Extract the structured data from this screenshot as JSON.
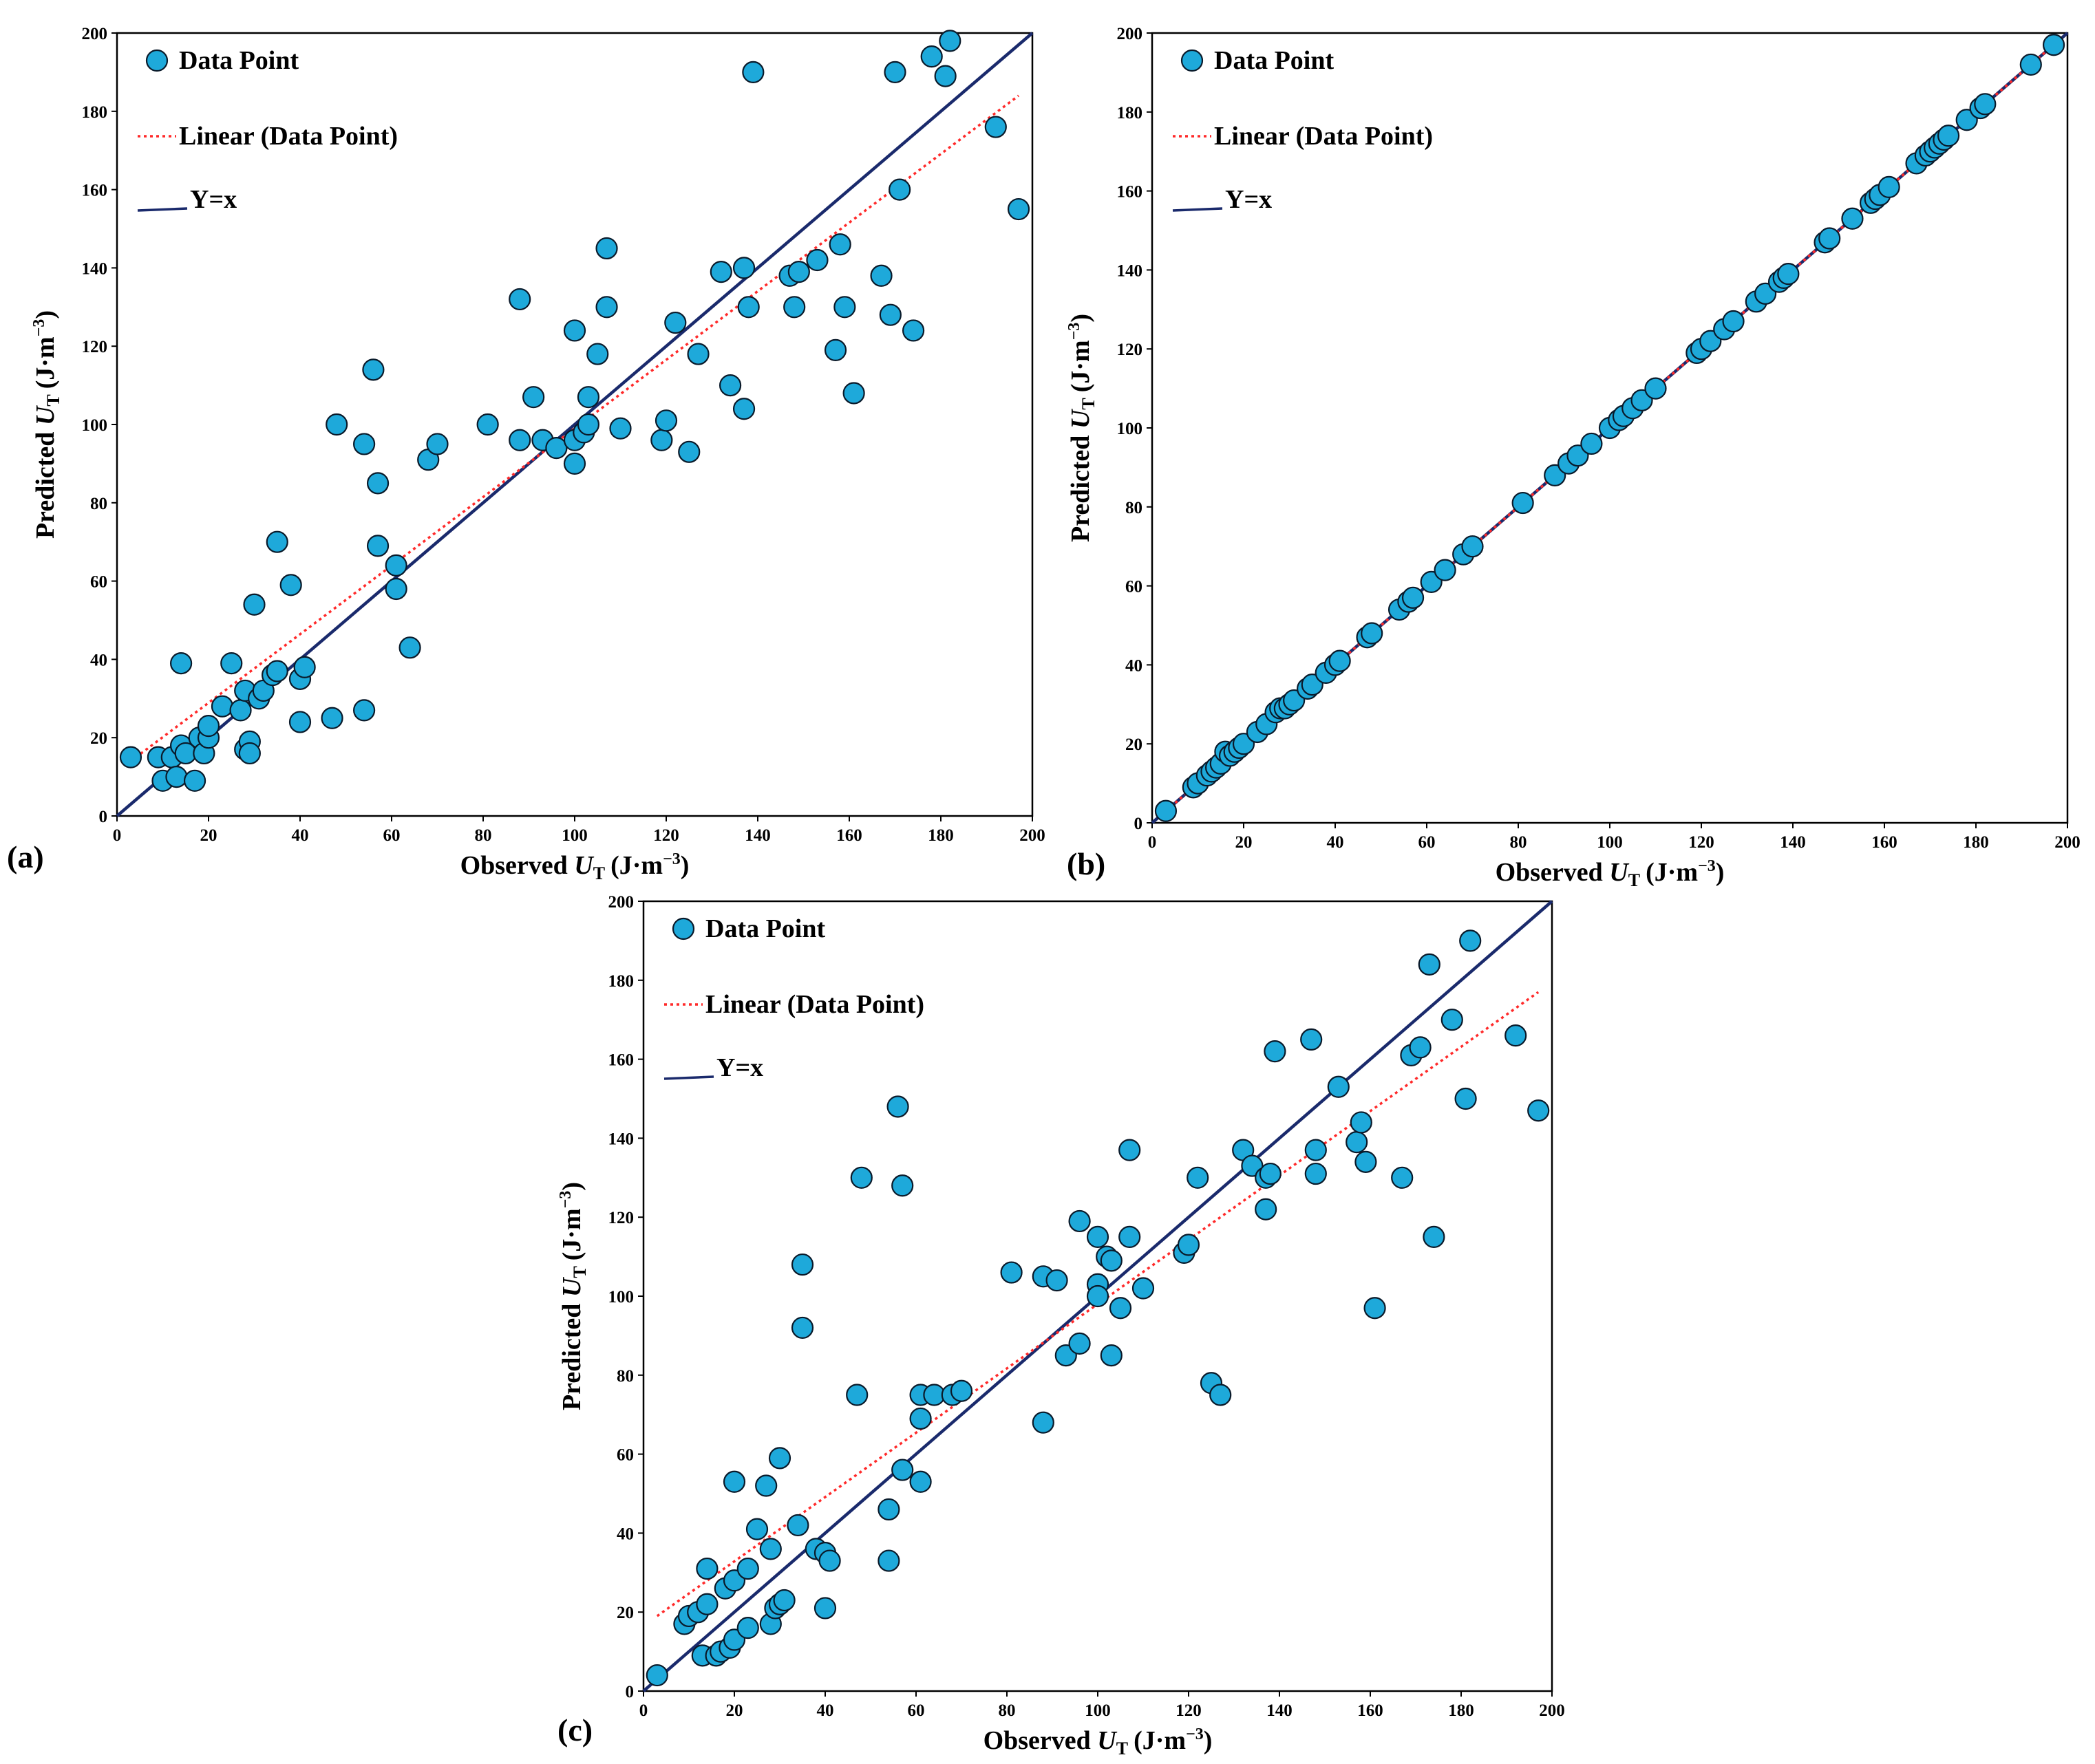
{
  "chart_data": [
    {
      "type": "scatter",
      "panel_label": "(a)",
      "xlabel_prefix": "Observed ",
      "ylabel_prefix": "Predicted ",
      "symbol": "U",
      "subscript": "T",
      "unit": "(J·m",
      "unit_exp": "−3",
      "unit_close": ")",
      "xlim": [
        0,
        200
      ],
      "ylim": [
        0,
        200
      ],
      "xticks": [
        "0",
        "20",
        "40",
        "60",
        "80",
        "100",
        "120",
        "140",
        "160",
        "180",
        "200"
      ],
      "yticks": [
        "0",
        "20",
        "40",
        "60",
        "80",
        "100",
        "120",
        "140",
        "160",
        "180",
        "200"
      ],
      "legend": [
        "Data Point",
        "Linear (Data Point)",
        "Y=x"
      ],
      "trend": {
        "x": [
          3,
          197
        ],
        "y": [
          14,
          184
        ]
      },
      "identity": {
        "x": [
          0,
          200
        ],
        "y": [
          0,
          200
        ]
      },
      "colors": {
        "points": "#1ea9da",
        "trend": "#ff2a2a",
        "identity": "#1a2a6c"
      },
      "points": [
        [
          3,
          15
        ],
        [
          9,
          15
        ],
        [
          10,
          9
        ],
        [
          12,
          15
        ],
        [
          13,
          10
        ],
        [
          14,
          18
        ],
        [
          14,
          39
        ],
        [
          15,
          16
        ],
        [
          17,
          9
        ],
        [
          18,
          20
        ],
        [
          19,
          16
        ],
        [
          20,
          20
        ],
        [
          20,
          23
        ],
        [
          23,
          28
        ],
        [
          25,
          39
        ],
        [
          27,
          27
        ],
        [
          28,
          32
        ],
        [
          28,
          17
        ],
        [
          29,
          19
        ],
        [
          29,
          16
        ],
        [
          30,
          54
        ],
        [
          31,
          30
        ],
        [
          32,
          32
        ],
        [
          34,
          36
        ],
        [
          35,
          37
        ],
        [
          35,
          70
        ],
        [
          38,
          59
        ],
        [
          40,
          35
        ],
        [
          40,
          24
        ],
        [
          41,
          38
        ],
        [
          47,
          25
        ],
        [
          48,
          100
        ],
        [
          54,
          95
        ],
        [
          54,
          27
        ],
        [
          56,
          114
        ],
        [
          57,
          85
        ],
        [
          57,
          69
        ],
        [
          61,
          64
        ],
        [
          61,
          58
        ],
        [
          64,
          43
        ],
        [
          68,
          91
        ],
        [
          70,
          95
        ],
        [
          81,
          100
        ],
        [
          88,
          96
        ],
        [
          88,
          132
        ],
        [
          91,
          107
        ],
        [
          93,
          96
        ],
        [
          96,
          94
        ],
        [
          100,
          124
        ],
        [
          100,
          96
        ],
        [
          100,
          90
        ],
        [
          102,
          98
        ],
        [
          103,
          100
        ],
        [
          103,
          107
        ],
        [
          105,
          118
        ],
        [
          107,
          145
        ],
        [
          107,
          130
        ],
        [
          110,
          99
        ],
        [
          119,
          96
        ],
        [
          120,
          101
        ],
        [
          122,
          126
        ],
        [
          125,
          93
        ],
        [
          127,
          118
        ],
        [
          132,
          139
        ],
        [
          134,
          110
        ],
        [
          137,
          140
        ],
        [
          137,
          104
        ],
        [
          138,
          130
        ],
        [
          139,
          190
        ],
        [
          147,
          138
        ],
        [
          148,
          130
        ],
        [
          149,
          139
        ],
        [
          153,
          142
        ],
        [
          157,
          119
        ],
        [
          158,
          146
        ],
        [
          159,
          130
        ],
        [
          161,
          108
        ],
        [
          167,
          138
        ],
        [
          169,
          128
        ],
        [
          170,
          190
        ],
        [
          171,
          160
        ],
        [
          174,
          124
        ],
        [
          178,
          194
        ],
        [
          181,
          189
        ],
        [
          182,
          198
        ],
        [
          192,
          176
        ],
        [
          197,
          155
        ]
      ]
    },
    {
      "type": "scatter",
      "panel_label": "(b)",
      "xlabel_prefix": "Observed ",
      "ylabel_prefix": "Predicted ",
      "symbol": "U",
      "subscript": "T",
      "unit": "(J·m",
      "unit_exp": "−3",
      "unit_close": ")",
      "xlim": [
        0,
        200
      ],
      "ylim": [
        0,
        200
      ],
      "xticks": [
        "0",
        "20",
        "40",
        "60",
        "80",
        "100",
        "120",
        "140",
        "160",
        "180",
        "200"
      ],
      "yticks": [
        "0",
        "20",
        "40",
        "60",
        "80",
        "100",
        "120",
        "140",
        "160",
        "180",
        "200"
      ],
      "legend": [
        "Data Point",
        "Linear (Data Point)",
        "Y=x"
      ],
      "trend": {
        "x": [
          3,
          197
        ],
        "y": [
          3,
          197
        ]
      },
      "identity": {
        "x": [
          0,
          200
        ],
        "y": [
          0,
          200
        ]
      },
      "colors": {
        "points": "#1ea9da",
        "trend": "#ff2a2a",
        "identity": "#1a2a6c"
      },
      "points": [
        [
          3,
          3
        ],
        [
          9,
          9
        ],
        [
          10,
          10
        ],
        [
          12,
          12
        ],
        [
          13,
          13
        ],
        [
          14,
          14
        ],
        [
          15,
          15
        ],
        [
          16,
          18
        ],
        [
          17,
          17
        ],
        [
          18,
          18
        ],
        [
          19,
          19
        ],
        [
          20,
          20
        ],
        [
          23,
          23
        ],
        [
          25,
          25
        ],
        [
          27,
          28
        ],
        [
          28,
          29
        ],
        [
          29,
          29
        ],
        [
          30,
          30
        ],
        [
          31,
          31
        ],
        [
          34,
          34
        ],
        [
          35,
          35
        ],
        [
          38,
          38
        ],
        [
          40,
          40
        ],
        [
          41,
          41
        ],
        [
          47,
          47
        ],
        [
          48,
          48
        ],
        [
          54,
          54
        ],
        [
          56,
          56
        ],
        [
          57,
          57
        ],
        [
          61,
          61
        ],
        [
          64,
          64
        ],
        [
          68,
          68
        ],
        [
          70,
          70
        ],
        [
          81,
          81
        ],
        [
          88,
          88
        ],
        [
          91,
          91
        ],
        [
          93,
          93
        ],
        [
          96,
          96
        ],
        [
          100,
          100
        ],
        [
          102,
          102
        ],
        [
          103,
          103
        ],
        [
          105,
          105
        ],
        [
          107,
          107
        ],
        [
          110,
          110
        ],
        [
          119,
          119
        ],
        [
          120,
          120
        ],
        [
          122,
          122
        ],
        [
          125,
          125
        ],
        [
          127,
          127
        ],
        [
          132,
          132
        ],
        [
          134,
          134
        ],
        [
          137,
          137
        ],
        [
          138,
          138
        ],
        [
          139,
          139
        ],
        [
          147,
          147
        ],
        [
          148,
          148
        ],
        [
          153,
          153
        ],
        [
          157,
          157
        ],
        [
          158,
          158
        ],
        [
          159,
          159
        ],
        [
          161,
          161
        ],
        [
          167,
          167
        ],
        [
          169,
          169
        ],
        [
          170,
          170
        ],
        [
          171,
          171
        ],
        [
          172,
          172
        ],
        [
          173,
          173
        ],
        [
          174,
          174
        ],
        [
          178,
          178
        ],
        [
          181,
          181
        ],
        [
          182,
          182
        ],
        [
          192,
          192
        ],
        [
          197,
          197
        ]
      ]
    },
    {
      "type": "scatter",
      "panel_label": "(c)",
      "xlabel_prefix": "Observed ",
      "ylabel_prefix": "Predicted ",
      "symbol": "U",
      "subscript": "T",
      "unit": "(J·m",
      "unit_exp": "−3",
      "unit_close": ")",
      "xlim": [
        0,
        200
      ],
      "ylim": [
        0,
        200
      ],
      "xticks": [
        "0",
        "20",
        "40",
        "60",
        "80",
        "100",
        "120",
        "140",
        "160",
        "180",
        "200"
      ],
      "yticks": [
        "0",
        "20",
        "40",
        "60",
        "80",
        "100",
        "120",
        "140",
        "160",
        "180",
        "200"
      ],
      "legend": [
        "Data Point",
        "Linear (Data Point)",
        "Y=x"
      ],
      "trend": {
        "x": [
          3,
          197
        ],
        "y": [
          19,
          177
        ]
      },
      "identity": {
        "x": [
          0,
          200
        ],
        "y": [
          0,
          200
        ]
      },
      "colors": {
        "points": "#1ea9da",
        "trend": "#ff2a2a",
        "identity": "#1a2a6c"
      },
      "points": [
        [
          3,
          4
        ],
        [
          9,
          17
        ],
        [
          10,
          19
        ],
        [
          12,
          20
        ],
        [
          13,
          9
        ],
        [
          14,
          31
        ],
        [
          14,
          22
        ],
        [
          16,
          9
        ],
        [
          17,
          10
        ],
        [
          18,
          26
        ],
        [
          19,
          11
        ],
        [
          20,
          53
        ],
        [
          20,
          13
        ],
        [
          20,
          28
        ],
        [
          23,
          31
        ],
        [
          23,
          16
        ],
        [
          25,
          41
        ],
        [
          27,
          52
        ],
        [
          28,
          36
        ],
        [
          28,
          17
        ],
        [
          29,
          21
        ],
        [
          30,
          59
        ],
        [
          30,
          22
        ],
        [
          31,
          23
        ],
        [
          34,
          42
        ],
        [
          35,
          108
        ],
        [
          35,
          92
        ],
        [
          38,
          36
        ],
        [
          40,
          35
        ],
        [
          41,
          33
        ],
        [
          40,
          21
        ],
        [
          47,
          75
        ],
        [
          48,
          130
        ],
        [
          54,
          46
        ],
        [
          54,
          33
        ],
        [
          56,
          148
        ],
        [
          57,
          128
        ],
        [
          57,
          56
        ],
        [
          61,
          75
        ],
        [
          61,
          69
        ],
        [
          61,
          53
        ],
        [
          64,
          75
        ],
        [
          68,
          75
        ],
        [
          70,
          76
        ],
        [
          81,
          106
        ],
        [
          88,
          68
        ],
        [
          88,
          105
        ],
        [
          91,
          104
        ],
        [
          93,
          85
        ],
        [
          96,
          119
        ],
        [
          96,
          88
        ],
        [
          100,
          115
        ],
        [
          100,
          103
        ],
        [
          100,
          100
        ],
        [
          102,
          110
        ],
        [
          103,
          109
        ],
        [
          103,
          85
        ],
        [
          105,
          97
        ],
        [
          107,
          137
        ],
        [
          107,
          115
        ],
        [
          110,
          102
        ],
        [
          119,
          111
        ],
        [
          120,
          113
        ],
        [
          122,
          130
        ],
        [
          125,
          78
        ],
        [
          127,
          75
        ],
        [
          132,
          137
        ],
        [
          134,
          133
        ],
        [
          137,
          130
        ],
        [
          137,
          122
        ],
        [
          138,
          131
        ],
        [
          139,
          162
        ],
        [
          147,
          165
        ],
        [
          148,
          137
        ],
        [
          148,
          131
        ],
        [
          153,
          153
        ],
        [
          157,
          139
        ],
        [
          158,
          144
        ],
        [
          159,
          134
        ],
        [
          161,
          97
        ],
        [
          167,
          130
        ],
        [
          169,
          161
        ],
        [
          171,
          163
        ],
        [
          173,
          184
        ],
        [
          174,
          115
        ],
        [
          178,
          170
        ],
        [
          181,
          150
        ],
        [
          182,
          190
        ],
        [
          192,
          166
        ],
        [
          197,
          147
        ]
      ]
    }
  ]
}
